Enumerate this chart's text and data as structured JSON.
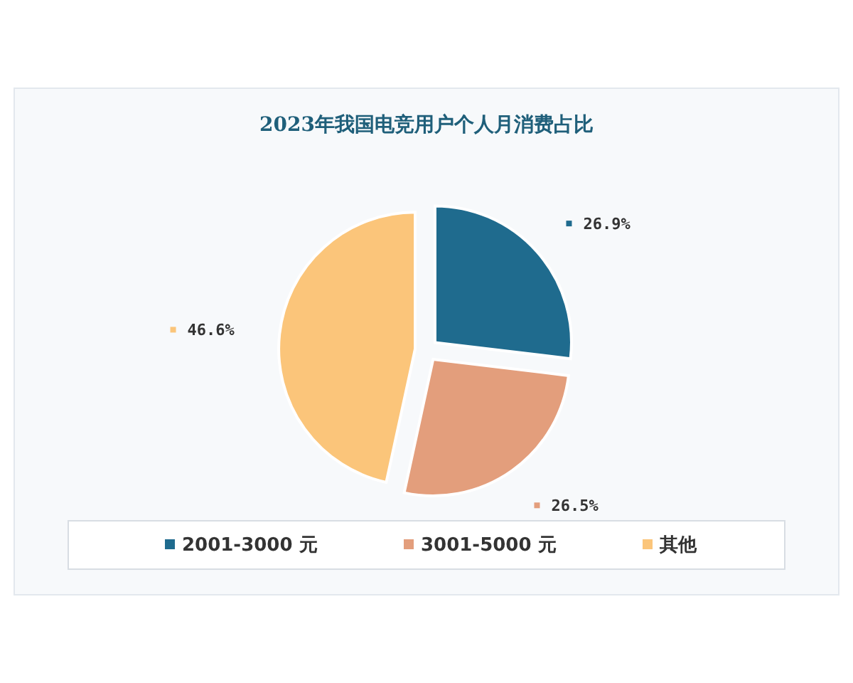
{
  "chart_data": {
    "type": "pie",
    "title": "2023年我国电竞用户个人月消费占比",
    "categories": [
      "2001-3000 元",
      "3001-5000 元",
      "其他"
    ],
    "values": [
      26.9,
      26.5,
      46.6
    ],
    "colors": [
      "#1f6b8e",
      "#e39e7c",
      "#fbc57a"
    ],
    "value_labels": [
      "26.9%",
      "26.5%",
      "46.6%"
    ],
    "legend": "bottom"
  }
}
